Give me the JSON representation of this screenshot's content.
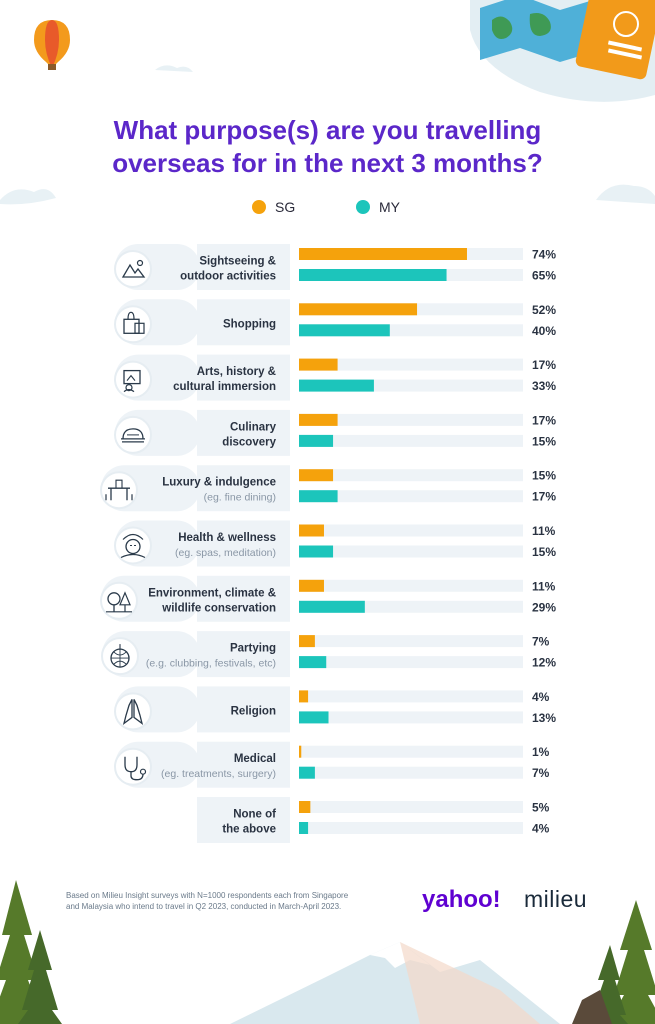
{
  "title": "What purpose(s) are you travelling overseas for in the next 3 months?",
  "legend": [
    {
      "name": "SG",
      "color": "#f5a20c"
    },
    {
      "name": "MY",
      "color": "#1cc5bb"
    }
  ],
  "chart_data": {
    "type": "bar",
    "orientation": "horizontal",
    "xlim": [
      0,
      100
    ],
    "categories": [
      {
        "label": [
          "Sightseeing &",
          "outdoor activities"
        ],
        "sub": "",
        "icon": "mountain-icon"
      },
      {
        "label": [
          "Shopping"
        ],
        "sub": "",
        "icon": "shopping-bag-icon"
      },
      {
        "label": [
          "Arts, history &",
          "cultural immersion"
        ],
        "sub": "",
        "icon": "painting-icon"
      },
      {
        "label": [
          "Culinary",
          "discovery"
        ],
        "sub": "",
        "icon": "food-icon"
      },
      {
        "label": [
          "Luxury & indulgence"
        ],
        "sub": "(eg. fine dining)",
        "icon": "dining-table-icon"
      },
      {
        "label": [
          "Health & wellness"
        ],
        "sub": "(eg. spas, meditation)",
        "icon": "spa-face-icon"
      },
      {
        "label": [
          "Environment, climate &",
          "wildlife conservation"
        ],
        "sub": "",
        "icon": "trees-icon"
      },
      {
        "label": [
          "Partying"
        ],
        "sub": "(e.g. clubbing, festivals, etc)",
        "icon": "disco-ball-icon"
      },
      {
        "label": [
          "Religion"
        ],
        "sub": "",
        "icon": "praying-hands-icon"
      },
      {
        "label": [
          "Medical"
        ],
        "sub": "(eg. treatments, surgery)",
        "icon": "stethoscope-icon"
      },
      {
        "label": [
          "None of",
          "the above"
        ],
        "sub": "",
        "icon": ""
      }
    ],
    "series": [
      {
        "name": "SG",
        "color": "#f5a20c",
        "values": [
          74,
          52,
          17,
          17,
          15,
          11,
          11,
          7,
          4,
          1,
          5
        ],
        "labels": [
          "74%",
          "52%",
          "17%",
          "17%",
          "15%",
          "11%",
          "11%",
          "7%",
          "4%",
          "1%",
          "5%"
        ]
      },
      {
        "name": "MY",
        "color": "#1cc5bb",
        "values": [
          65,
          40,
          33,
          15,
          17,
          15,
          29,
          12,
          13,
          7,
          4
        ],
        "labels": [
          "65%",
          "40%",
          "33%",
          "15%",
          "17%",
          "15%",
          "29%",
          "12%",
          "13%",
          "7%",
          "4%"
        ]
      }
    ]
  },
  "footnote": [
    "Based on Milieu Insight surveys with N=1000 respondents each from Singapore",
    "and Malaysia who intend to travel in Q2 2023, conducted in March-April 2023."
  ],
  "logos": {
    "yahoo": "yahoo!",
    "milieu": "milieu"
  },
  "colors": {
    "title": "#5b27c9",
    "track": "#eef3f7",
    "panel": "#eef3f7",
    "yahoo": "#5f01d1",
    "milieu": "#1a2a3a"
  }
}
